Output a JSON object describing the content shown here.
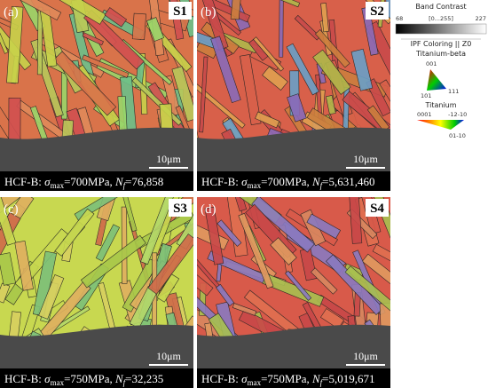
{
  "panels": [
    {
      "label": "(a)",
      "sample": "S1",
      "scale": "10μm",
      "caption": {
        "prefix": "HCF-B: ",
        "sigma": "σ",
        "sigma_sub": "max",
        "stress": "=700MPa, ",
        "n": "N",
        "n_sub": "f",
        "cycles": "=76,858"
      }
    },
    {
      "label": "(b)",
      "sample": "S2",
      "scale": "10μm",
      "caption": {
        "prefix": "HCF-B: ",
        "sigma": "σ",
        "sigma_sub": "max",
        "stress": "=700MPa, ",
        "n": "N",
        "n_sub": "f",
        "cycles": "=5,631,460"
      }
    },
    {
      "label": "(c)",
      "sample": "S3",
      "scale": "10μm",
      "caption": {
        "prefix": "HCF-B: ",
        "sigma": "σ",
        "sigma_sub": "max",
        "stress": "=750MPa, ",
        "n": "N",
        "n_sub": "f",
        "cycles": "=32,235"
      }
    },
    {
      "label": "(d)",
      "sample": "S4",
      "scale": "10μm",
      "caption": {
        "prefix": "HCF-B: ",
        "sigma": "σ",
        "sigma_sub": "max",
        "stress": "=750MPa, ",
        "n": "N",
        "n_sub": "f",
        "cycles": "=5,019,671"
      }
    }
  ],
  "legend": {
    "band_contrast": "Band Contrast",
    "bc_min": "68",
    "bc_range": "[0...255]",
    "bc_max": "227",
    "ipf": "IPF Coloring || Z0",
    "beta": "Titanium-beta",
    "beta_top": "001",
    "beta_left": "101",
    "beta_right": "111",
    "alpha": "Titanium",
    "alpha_left": "0001",
    "alpha_right": "-12-10",
    "alpha_bottom": "01-10"
  }
}
